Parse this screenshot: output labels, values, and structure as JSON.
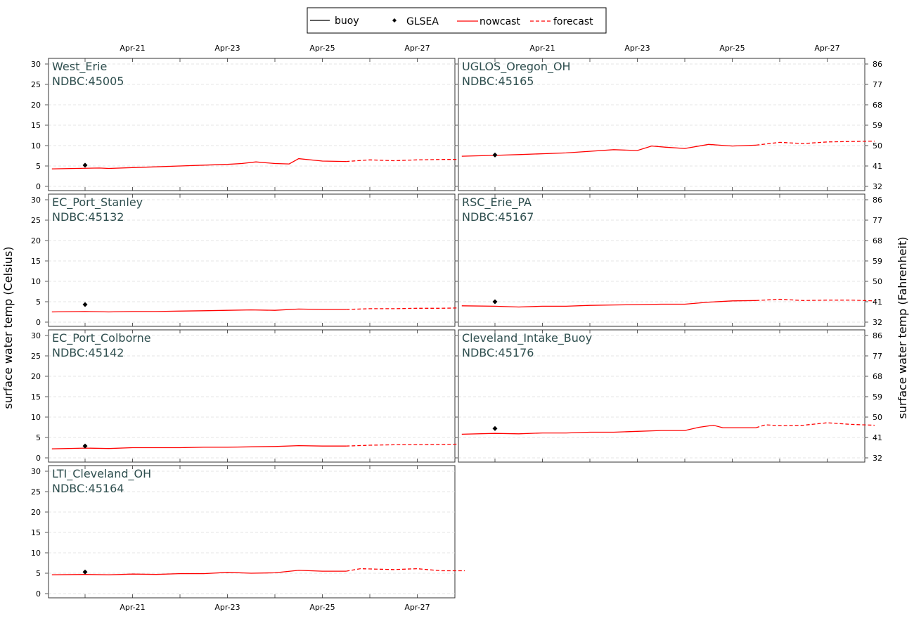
{
  "legend": {
    "items": [
      {
        "label": "buoy",
        "kind": "line",
        "color": "#000000",
        "dash": false
      },
      {
        "label": "GLSEA",
        "kind": "marker",
        "color": "#000000"
      },
      {
        "label": "nowcast",
        "kind": "line",
        "color": "#ff0000",
        "dash": false
      },
      {
        "label": "forecast",
        "kind": "line",
        "color": "#ff0000",
        "dash": true
      }
    ]
  },
  "axes": {
    "left_label": "surface water temp (Celsius)",
    "right_label": "surface water temp (Fahrenheit)",
    "x_ticks": [
      "Apr-21",
      "Apr-23",
      "Apr-25",
      "Apr-27"
    ],
    "y_ticks_c": [
      0,
      5,
      10,
      15,
      20,
      25,
      30
    ],
    "y_ticks_f": [
      32,
      41,
      50,
      59,
      68,
      77,
      86
    ]
  },
  "chart_data": {
    "type": "line",
    "x_unit": "days (Apr-21 = 21)",
    "xlim": [
      19.3,
      28.0
    ],
    "ylim_celsius": [
      0,
      30
    ],
    "ylim_fahrenheit": [
      32,
      86
    ],
    "grid": true,
    "legend_position": "top-center",
    "panels": [
      {
        "name": "West_Erie",
        "station": "NDBC:45005",
        "glsea": {
          "x": 20.0,
          "y": 5.2
        },
        "nowcast": {
          "x": [
            19.3,
            19.8,
            20.3,
            20.5,
            21.0,
            21.5,
            22.0,
            22.5,
            23.0,
            23.3,
            23.6,
            24.0,
            24.3,
            24.5,
            25.0,
            25.5
          ],
          "y": [
            4.3,
            4.4,
            4.5,
            4.4,
            4.6,
            4.8,
            5.0,
            5.2,
            5.4,
            5.6,
            6.0,
            5.6,
            5.5,
            6.8,
            6.2,
            6.1
          ]
        },
        "forecast": {
          "x": [
            25.5,
            26.0,
            26.5,
            27.0,
            27.5,
            28.0
          ],
          "y": [
            6.1,
            6.5,
            6.3,
            6.5,
            6.6,
            6.6
          ]
        }
      },
      {
        "name": "UGLOS_Oregon_OH",
        "station": "NDBC:45165",
        "glsea": {
          "x": 20.0,
          "y": 7.7
        },
        "nowcast": {
          "x": [
            19.3,
            20.0,
            20.5,
            21.0,
            21.5,
            22.0,
            22.5,
            23.0,
            23.3,
            23.6,
            24.0,
            24.5,
            25.0,
            25.5
          ],
          "y": [
            7.4,
            7.6,
            7.8,
            8.0,
            8.2,
            8.6,
            9.0,
            8.8,
            9.9,
            9.6,
            9.3,
            10.3,
            9.9,
            10.1
          ]
        },
        "forecast": {
          "x": [
            25.5,
            26.0,
            26.5,
            27.0,
            27.5,
            28.0
          ],
          "y": [
            10.1,
            10.8,
            10.5,
            10.9,
            11.0,
            11.1
          ]
        }
      },
      {
        "name": "EC_Port_Stanley",
        "station": "NDBC:45132",
        "glsea": {
          "x": 20.0,
          "y": 4.3
        },
        "nowcast": {
          "x": [
            19.3,
            20.0,
            20.5,
            21.0,
            21.5,
            22.0,
            22.5,
            23.0,
            23.5,
            24.0,
            24.5,
            25.0,
            25.5
          ],
          "y": [
            2.5,
            2.6,
            2.5,
            2.6,
            2.6,
            2.7,
            2.8,
            2.9,
            3.0,
            2.9,
            3.2,
            3.1,
            3.1
          ]
        },
        "forecast": {
          "x": [
            25.5,
            26.0,
            26.5,
            27.0,
            27.5,
            28.0
          ],
          "y": [
            3.1,
            3.3,
            3.3,
            3.4,
            3.4,
            3.5
          ]
        }
      },
      {
        "name": "RSC_Erie_PA",
        "station": "NDBC:45167",
        "glsea": {
          "x": 20.0,
          "y": 5.0
        },
        "nowcast": {
          "x": [
            19.3,
            20.0,
            20.5,
            21.0,
            21.5,
            22.0,
            22.5,
            23.0,
            23.5,
            24.0,
            24.5,
            25.0,
            25.5
          ],
          "y": [
            4.0,
            3.9,
            3.7,
            3.9,
            3.9,
            4.1,
            4.2,
            4.3,
            4.4,
            4.4,
            4.9,
            5.2,
            5.3
          ]
        },
        "forecast": {
          "x": [
            25.5,
            26.0,
            26.5,
            27.0,
            27.5,
            28.0
          ],
          "y": [
            5.3,
            5.6,
            5.3,
            5.4,
            5.4,
            5.2
          ]
        }
      },
      {
        "name": "EC_Port_Colborne",
        "station": "NDBC:45142",
        "glsea": {
          "x": 20.0,
          "y": 2.9
        },
        "nowcast": {
          "x": [
            19.3,
            20.0,
            20.5,
            21.0,
            21.5,
            22.0,
            22.5,
            23.0,
            23.5,
            24.0,
            24.5,
            25.0,
            25.5
          ],
          "y": [
            2.2,
            2.4,
            2.3,
            2.5,
            2.5,
            2.5,
            2.6,
            2.6,
            2.7,
            2.8,
            3.0,
            2.9,
            2.9
          ]
        },
        "forecast": {
          "x": [
            25.5,
            26.0,
            26.5,
            27.0,
            27.5,
            28.0
          ],
          "y": [
            2.9,
            3.1,
            3.2,
            3.2,
            3.3,
            3.4
          ]
        }
      },
      {
        "name": "Cleveland_Intake_Buoy",
        "station": "NDBC:45176",
        "glsea": {
          "x": 20.0,
          "y": 7.2
        },
        "nowcast": {
          "x": [
            19.3,
            20.0,
            20.5,
            21.0,
            21.5,
            22.0,
            22.5,
            23.0,
            23.5,
            24.0,
            24.3,
            24.6,
            24.8,
            25.5
          ],
          "y": [
            5.8,
            6.0,
            5.9,
            6.1,
            6.1,
            6.3,
            6.3,
            6.5,
            6.7,
            6.7,
            7.5,
            8.0,
            7.4,
            7.4
          ]
        },
        "forecast": {
          "x": [
            25.5,
            25.7,
            26.0,
            26.5,
            27.0,
            27.5,
            28.0
          ],
          "y": [
            7.4,
            8.1,
            7.9,
            8.0,
            8.6,
            8.2,
            8.0
          ]
        }
      },
      {
        "name": "LTI_Cleveland_OH",
        "station": "NDBC:45164",
        "glsea": {
          "x": 20.0,
          "y": 5.3
        },
        "nowcast": {
          "x": [
            19.3,
            20.0,
            20.5,
            21.0,
            21.5,
            22.0,
            22.5,
            23.0,
            23.5,
            24.0,
            24.5,
            25.0,
            25.5
          ],
          "y": [
            4.6,
            4.7,
            4.6,
            4.8,
            4.7,
            4.9,
            4.9,
            5.2,
            5.0,
            5.1,
            5.7,
            5.5,
            5.5
          ]
        },
        "forecast": {
          "x": [
            25.5,
            25.8,
            26.5,
            27.0,
            27.5,
            28.0
          ],
          "y": [
            5.5,
            6.1,
            5.9,
            6.1,
            5.6,
            5.6
          ]
        }
      }
    ]
  }
}
